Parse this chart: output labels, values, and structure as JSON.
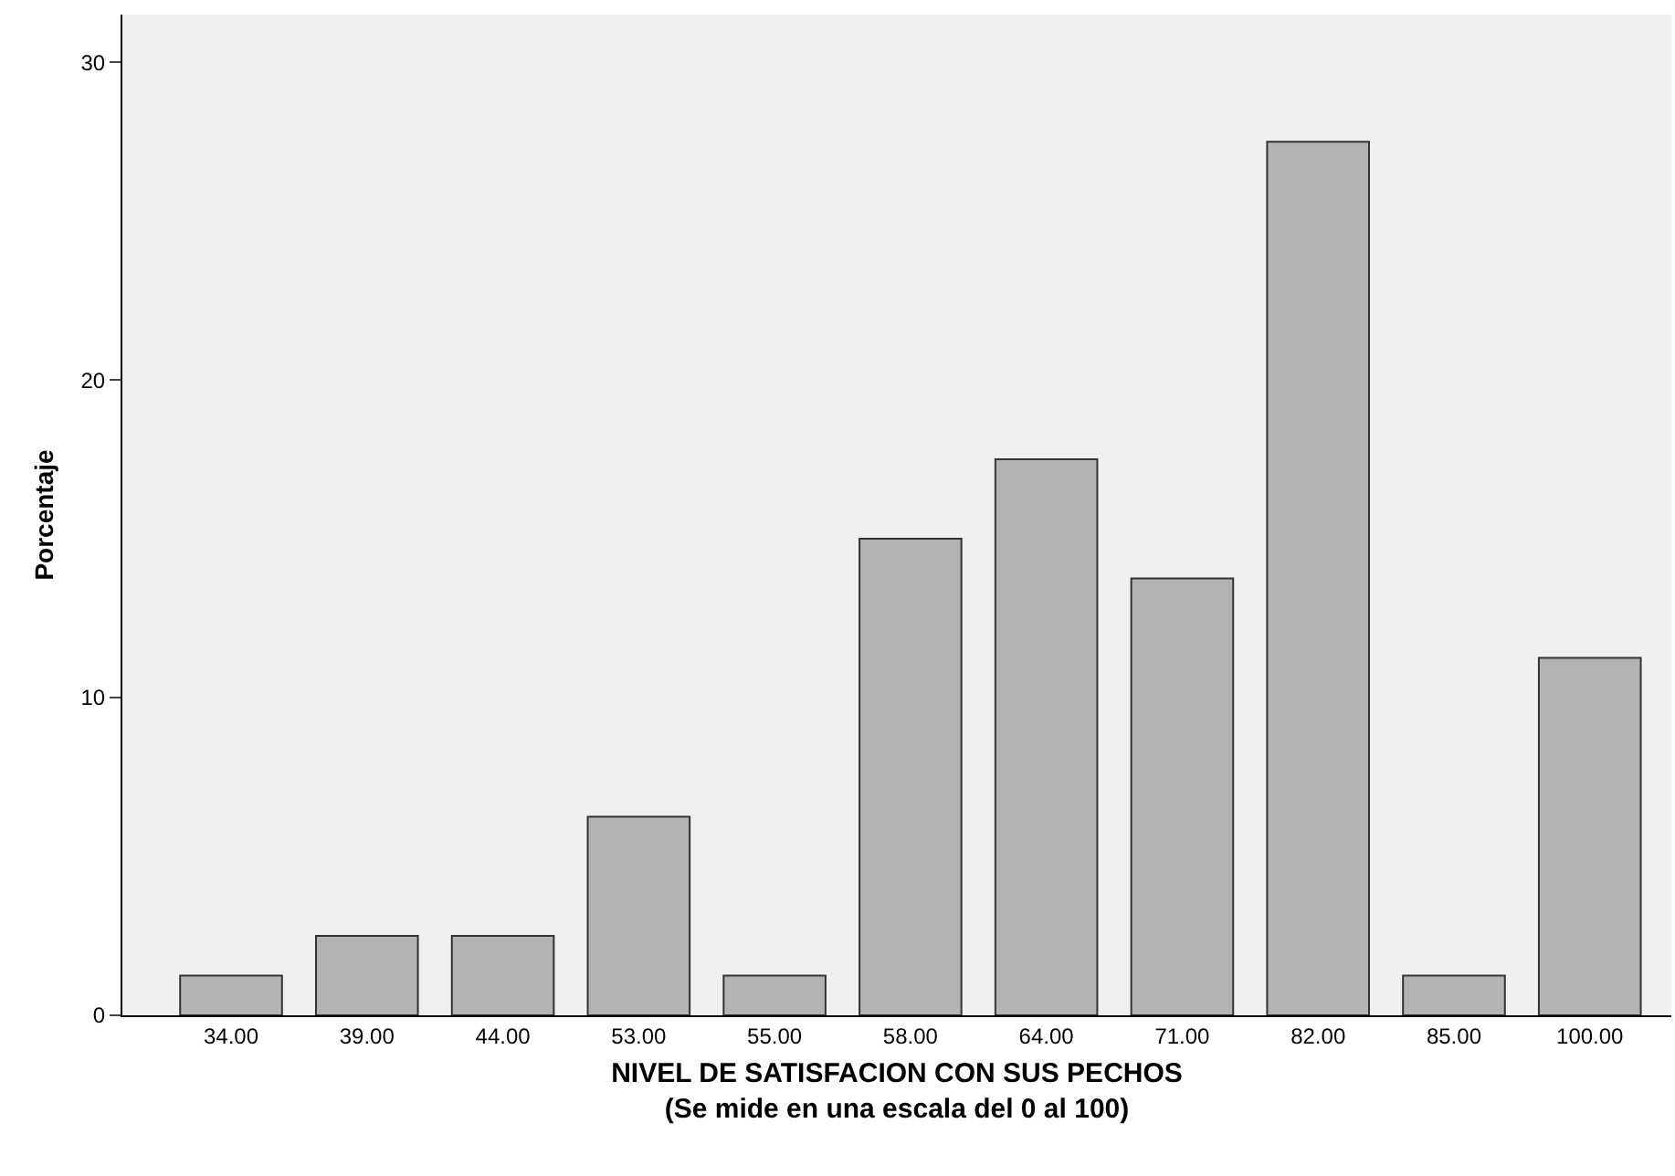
{
  "chart_data": {
    "type": "bar",
    "xlabel": "NIVEL DE SATISFACION CON SUS PECHOS\n(Se mide en una escala del 0 al 100)",
    "ylabel": "Porcentaje",
    "categories": [
      "34.00",
      "39.00",
      "44.00",
      "53.00",
      "55.00",
      "58.00",
      "64.00",
      "71.00",
      "82.00",
      "85.00",
      "100.00"
    ],
    "values": [
      1.25,
      2.5,
      2.5,
      6.25,
      1.25,
      15,
      17.5,
      13.75,
      27.5,
      1.25,
      11.25
    ],
    "color": "#b3b3b3",
    "ylim": [
      0,
      31.5
    ],
    "yticks": [
      0,
      10,
      20,
      30
    ],
    "grid": false
  }
}
